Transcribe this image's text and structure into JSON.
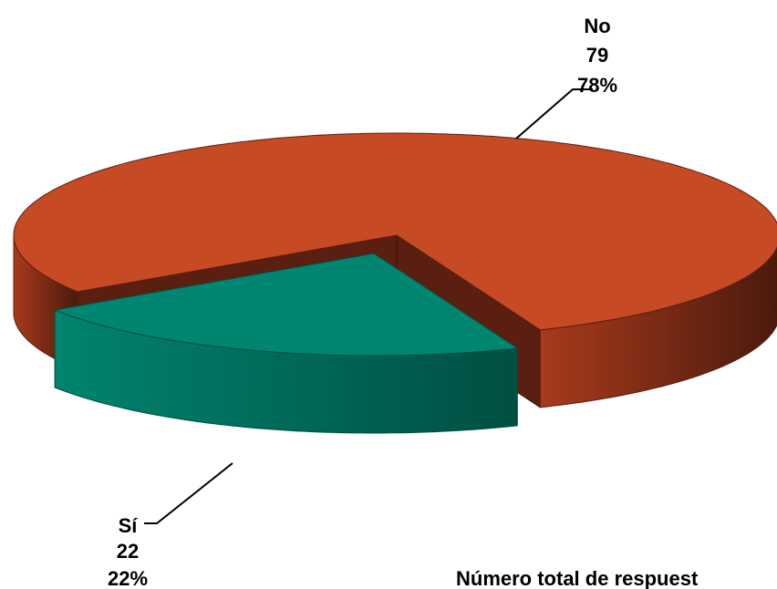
{
  "chart_data": {
    "type": "pie3d",
    "categories": [
      "No",
      "Sí"
    ],
    "values": [
      79,
      22
    ],
    "percentages": [
      78,
      22
    ],
    "percent_labels": [
      "78%",
      "22%"
    ],
    "colors": [
      "#c64a24",
      "#008570"
    ],
    "footer": "Número total de respuest"
  }
}
